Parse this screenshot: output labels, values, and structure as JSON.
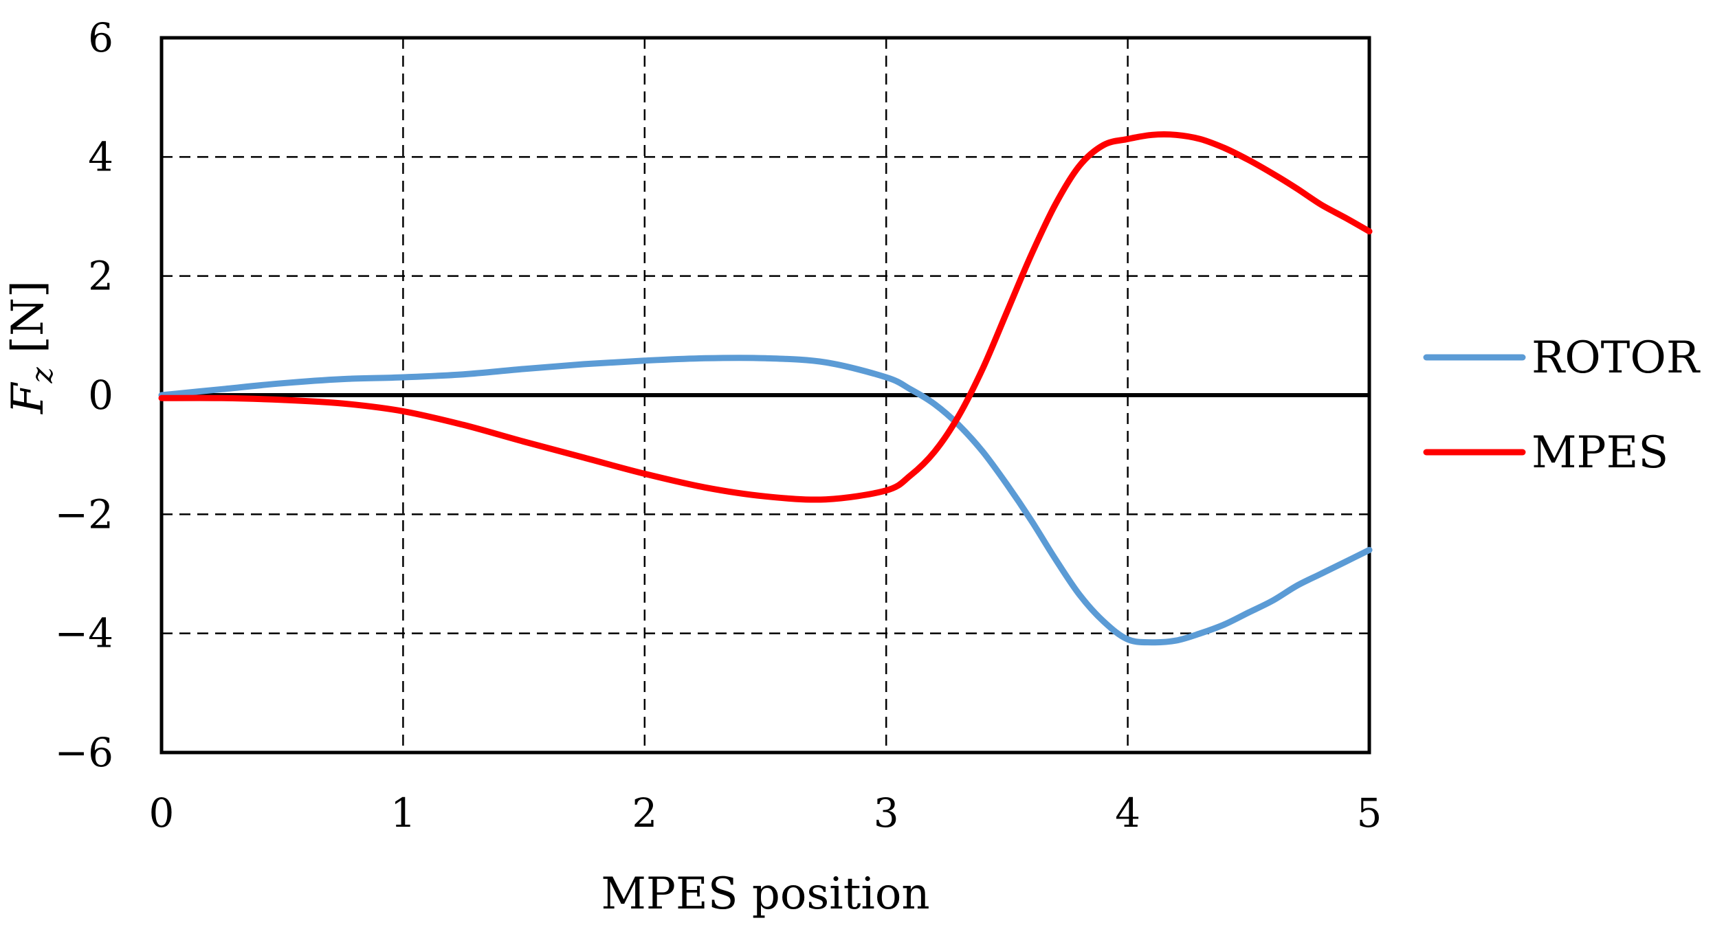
{
  "chart_data": {
    "type": "line",
    "xlabel": "MPES position",
    "ylabel": "F",
    "ylabel_subscript": "z",
    "ylabel_unit": " [N]",
    "xlim": [
      0,
      5
    ],
    "ylim": [
      -6,
      6
    ],
    "x_ticks": [
      0,
      1,
      2,
      3,
      4,
      5
    ],
    "y_ticks": [
      -6,
      -4,
      -2,
      0,
      2,
      4,
      6
    ],
    "x_tick_labels": [
      "0",
      "1",
      "2",
      "3",
      "4",
      "5"
    ],
    "y_tick_labels": [
      "−6",
      "−4",
      "−2",
      "0",
      "2",
      "4",
      "6"
    ],
    "grid": true,
    "legend_position": "right",
    "series": [
      {
        "name": "ROTOR",
        "color": "#5B9BD5",
        "x": [
          0,
          0.25,
          0.5,
          0.75,
          1.0,
          1.25,
          1.5,
          1.75,
          2.0,
          2.25,
          2.5,
          2.75,
          3.0,
          3.1,
          3.2,
          3.3,
          3.4,
          3.5,
          3.6,
          3.7,
          3.8,
          3.9,
          4.0,
          4.1,
          4.2,
          4.3,
          4.4,
          4.5,
          4.6,
          4.7,
          4.8,
          4.9,
          5.0
        ],
        "y": [
          0,
          0.1,
          0.2,
          0.27,
          0.3,
          0.35,
          0.44,
          0.52,
          0.58,
          0.62,
          0.62,
          0.55,
          0.3,
          0.1,
          -0.15,
          -0.5,
          -0.95,
          -1.5,
          -2.1,
          -2.75,
          -3.35,
          -3.8,
          -4.1,
          -4.15,
          -4.12,
          -4.0,
          -3.85,
          -3.65,
          -3.45,
          -3.2,
          -3.0,
          -2.8,
          -2.6
        ]
      },
      {
        "name": "MPES",
        "color": "#FF0000",
        "x": [
          0,
          0.25,
          0.5,
          0.75,
          1.0,
          1.25,
          1.5,
          1.75,
          2.0,
          2.25,
          2.5,
          2.75,
          3.0,
          3.1,
          3.2,
          3.3,
          3.4,
          3.5,
          3.6,
          3.7,
          3.8,
          3.9,
          4.0,
          4.1,
          4.2,
          4.3,
          4.4,
          4.5,
          4.6,
          4.7,
          4.8,
          4.9,
          5.0
        ],
        "y": [
          -0.05,
          -0.05,
          -0.08,
          -0.14,
          -0.27,
          -0.5,
          -0.78,
          -1.05,
          -1.32,
          -1.55,
          -1.7,
          -1.75,
          -1.6,
          -1.35,
          -0.95,
          -0.35,
          0.45,
          1.4,
          2.35,
          3.2,
          3.85,
          4.2,
          4.3,
          4.37,
          4.37,
          4.3,
          4.15,
          3.95,
          3.72,
          3.47,
          3.2,
          2.98,
          2.75
        ]
      }
    ]
  }
}
